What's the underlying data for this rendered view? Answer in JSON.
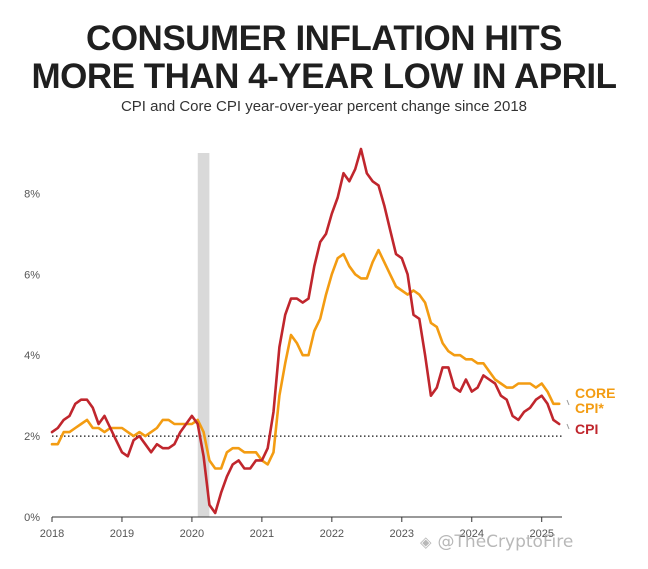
{
  "title_line1": "CONSUMER INFLATION HITS",
  "title_line2": "MORE THAN 4-YEAR LOW IN APRIL",
  "subtitle": "CPI and Core CPI year-over-year percent change since 2018",
  "labels": {
    "core_line1": "CORE",
    "core_line2": "CPI*",
    "cpi": "CPI"
  },
  "watermark": {
    "icon": "diamond-logo-icon",
    "text": "@TheCryptoFire"
  },
  "colors": {
    "cpi": "#c0262d",
    "core": "#f39c12",
    "recession": "#d9d9d9",
    "reference": "#111111"
  },
  "chart_data": {
    "type": "line",
    "title": "CONSUMER INFLATION HITS MORE THAN 4-YEAR LOW IN APRIL",
    "subtitle": "CPI and Core CPI year-over-year percent change since 2018",
    "xlabel": "",
    "ylabel": "",
    "x_range": [
      "2018-01",
      "2025-04"
    ],
    "ylim": [
      0,
      9
    ],
    "y_ticks": [
      "0%",
      "2%",
      "4%",
      "6%",
      "8%"
    ],
    "y_tick_values": [
      0,
      2,
      4,
      6,
      8
    ],
    "x_ticks": [
      "2018",
      "2019",
      "2020",
      "2021",
      "2022",
      "2023",
      "2024",
      "2025"
    ],
    "reference_line": {
      "value": 2,
      "style": "dotted"
    },
    "shaded_period": [
      "2020-02",
      "2020-04"
    ],
    "grid": false,
    "legend": "direct labels at line ends",
    "series": [
      {
        "name": "CPI",
        "start": "2018-01",
        "frequency": "monthly",
        "values": [
          2.1,
          2.2,
          2.4,
          2.5,
          2.8,
          2.9,
          2.9,
          2.7,
          2.3,
          2.5,
          2.2,
          1.9,
          1.6,
          1.5,
          1.9,
          2.0,
          1.8,
          1.6,
          1.8,
          1.7,
          1.7,
          1.8,
          2.1,
          2.3,
          2.5,
          2.3,
          1.5,
          0.3,
          0.1,
          0.6,
          1.0,
          1.3,
          1.4,
          1.2,
          1.2,
          1.4,
          1.4,
          1.7,
          2.6,
          4.2,
          5.0,
          5.4,
          5.4,
          5.3,
          5.4,
          6.2,
          6.8,
          7.0,
          7.5,
          7.9,
          8.5,
          8.3,
          8.6,
          9.1,
          8.5,
          8.3,
          8.2,
          7.7,
          7.1,
          6.5,
          6.4,
          6.0,
          5.0,
          4.9,
          4.0,
          3.0,
          3.2,
          3.7,
          3.7,
          3.2,
          3.1,
          3.4,
          3.1,
          3.2,
          3.5,
          3.4,
          3.3,
          3.0,
          2.9,
          2.5,
          2.4,
          2.6,
          2.7,
          2.9,
          3.0,
          2.8,
          2.4,
          2.3
        ]
      },
      {
        "name": "CORE CPI*",
        "start": "2018-01",
        "frequency": "monthly",
        "values": [
          1.8,
          1.8,
          2.1,
          2.1,
          2.2,
          2.3,
          2.4,
          2.2,
          2.2,
          2.1,
          2.2,
          2.2,
          2.2,
          2.1,
          2.0,
          2.1,
          2.0,
          2.1,
          2.2,
          2.4,
          2.4,
          2.3,
          2.3,
          2.3,
          2.3,
          2.4,
          2.1,
          1.4,
          1.2,
          1.2,
          1.6,
          1.7,
          1.7,
          1.6,
          1.6,
          1.6,
          1.4,
          1.3,
          1.6,
          3.0,
          3.8,
          4.5,
          4.3,
          4.0,
          4.0,
          4.6,
          4.9,
          5.5,
          6.0,
          6.4,
          6.5,
          6.2,
          6.0,
          5.9,
          5.9,
          6.3,
          6.6,
          6.3,
          6.0,
          5.7,
          5.6,
          5.5,
          5.6,
          5.5,
          5.3,
          4.8,
          4.7,
          4.3,
          4.1,
          4.0,
          4.0,
          3.9,
          3.9,
          3.8,
          3.8,
          3.6,
          3.4,
          3.3,
          3.2,
          3.2,
          3.3,
          3.3,
          3.3,
          3.2,
          3.3,
          3.1,
          2.8,
          2.8
        ]
      }
    ]
  }
}
